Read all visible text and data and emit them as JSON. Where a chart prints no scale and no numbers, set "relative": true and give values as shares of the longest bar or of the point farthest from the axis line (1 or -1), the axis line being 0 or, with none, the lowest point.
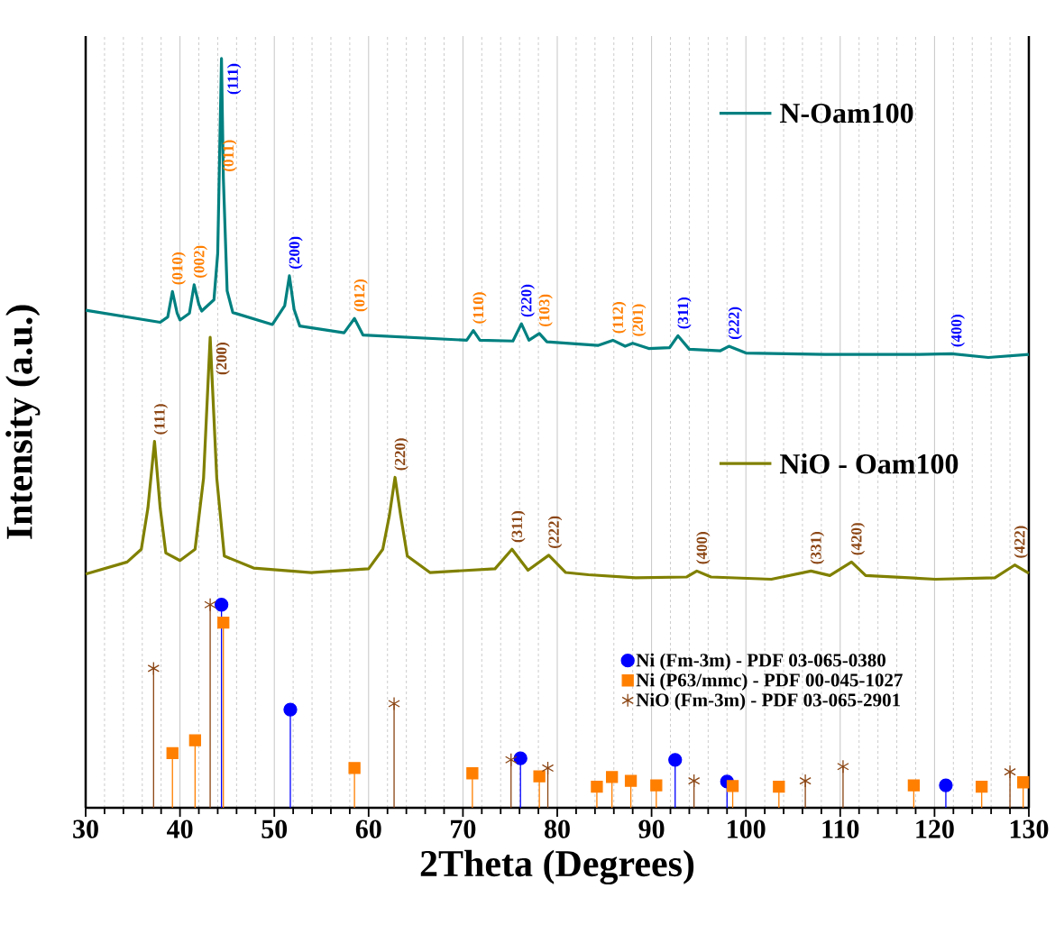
{
  "chart_data": {
    "type": "line",
    "relative": true,
    "xlabel": "2Theta (Degrees)",
    "ylabel": "Intensity (a.u.)",
    "xlim": [
      30,
      130
    ],
    "xticks": [
      30,
      40,
      50,
      60,
      70,
      80,
      90,
      100,
      110,
      120,
      130,
      {
        "value": 32,
        "label": null
      },
      {
        "value": 34,
        "label": null
      },
      {
        "value": 36,
        "label": null
      },
      {
        "value": 38,
        "label": null
      },
      {
        "value": 42,
        "label": null
      },
      {
        "value": 44,
        "label": null
      },
      {
        "value": 46,
        "label": null
      },
      {
        "value": 48,
        "label": null
      },
      {
        "value": 52,
        "label": null
      },
      {
        "value": 54,
        "label": null
      },
      {
        "value": 56,
        "label": null
      },
      {
        "value": 58,
        "label": null
      },
      {
        "value": 62,
        "label": null
      },
      {
        "value": 64,
        "label": null
      },
      {
        "value": 66,
        "label": null
      },
      {
        "value": 68,
        "label": null
      },
      {
        "value": 72,
        "label": null
      },
      {
        "value": 74,
        "label": null
      },
      {
        "value": 76,
        "label": null
      },
      {
        "value": 78,
        "label": null
      },
      {
        "value": 82,
        "label": null
      },
      {
        "value": 84,
        "label": null
      },
      {
        "value": 86,
        "label": null
      },
      {
        "value": 88,
        "label": null
      },
      {
        "value": 92,
        "label": null
      },
      {
        "value": 94,
        "label": null
      },
      {
        "value": 96,
        "label": null
      },
      {
        "value": 98,
        "label": null
      },
      {
        "value": 102,
        "label": null
      },
      {
        "value": 104,
        "label": null
      },
      {
        "value": 106,
        "label": null
      },
      {
        "value": 108,
        "label": null
      },
      {
        "value": 112,
        "label": null
      },
      {
        "value": 114,
        "label": null
      },
      {
        "value": 116,
        "label": null
      },
      {
        "value": 118,
        "label": null
      },
      {
        "value": 122,
        "label": null
      },
      {
        "value": 124,
        "label": null
      },
      {
        "value": 126,
        "label": null
      },
      {
        "value": 128,
        "label": null
      }
    ],
    "grid": "x",
    "legend": "right",
    "series": [
      {
        "name": "N-Oam100",
        "color": "#008080",
        "x": [
          30,
          37.9,
          38.7,
          39.2,
          39.7,
          40.0,
          41.0,
          41.5,
          42.0,
          42.3,
          43.6,
          44.0,
          44.4,
          44.6,
          45.0,
          45.6,
          49.8,
          51.1,
          51.6,
          52.1,
          52.7,
          57.4,
          58.5,
          59.4,
          70.4,
          71.1,
          71.8,
          75.3,
          76.2,
          77.0,
          78.1,
          78.9,
          84.3,
          85.9,
          87.2,
          88.0,
          89.7,
          91.9,
          92.8,
          94.0,
          97.3,
          98.2,
          100.0,
          108.4,
          118.4,
          121.8,
          125.7,
          130
        ],
        "values": [
          0.664,
          0.648,
          0.655,
          0.689,
          0.66,
          0.651,
          0.66,
          0.698,
          0.672,
          0.663,
          0.678,
          0.74,
          1.0,
          0.84,
          0.69,
          0.661,
          0.645,
          0.67,
          0.71,
          0.665,
          0.643,
          0.634,
          0.653,
          0.631,
          0.624,
          0.637,
          0.624,
          0.623,
          0.646,
          0.624,
          0.633,
          0.622,
          0.617,
          0.624,
          0.616,
          0.62,
          0.613,
          0.614,
          0.63,
          0.612,
          0.61,
          0.616,
          0.607,
          0.605,
          0.605,
          0.606,
          0.601,
          0.605
        ]
      },
      {
        "name": "NiO - Oam100",
        "color": "#808000",
        "x": [
          30,
          34.4,
          35.9,
          36.6,
          37.3,
          37.9,
          38.5,
          40.0,
          41.6,
          42.5,
          43.2,
          43.9,
          44.7,
          47.8,
          53.9,
          60.0,
          61.5,
          62.2,
          62.8,
          63.4,
          64.1,
          66.5,
          73.4,
          75.2,
          76.9,
          79.1,
          80.9,
          83.3,
          88.3,
          93.7,
          94.8,
          96.3,
          102.7,
          106.9,
          108.9,
          111.2,
          112.7,
          120.1,
          126.4,
          128.5,
          130
        ],
        "values": [
          0.312,
          0.328,
          0.345,
          0.4,
          0.489,
          0.4,
          0.34,
          0.33,
          0.345,
          0.44,
          0.628,
          0.44,
          0.336,
          0.32,
          0.314,
          0.319,
          0.345,
          0.39,
          0.441,
          0.39,
          0.336,
          0.314,
          0.319,
          0.345,
          0.317,
          0.337,
          0.314,
          0.311,
          0.307,
          0.308,
          0.316,
          0.308,
          0.305,
          0.316,
          0.31,
          0.328,
          0.31,
          0.305,
          0.307,
          0.324,
          0.313
        ]
      },
      {
        "name": "Ni (Fm-3m) - PDF 03-065-0380",
        "type": "lollipop",
        "marker": "circle",
        "color": "#0000ff",
        "x": [
          44.4,
          51.7,
          76.1,
          92.5,
          98.0,
          121.2
        ],
        "values": [
          0.271,
          0.131,
          0.066,
          0.064,
          0.035,
          0.03
        ]
      },
      {
        "name": "Ni (P63/mmc) - PDF 00-045-1027",
        "type": "lollipop",
        "marker": "square",
        "color": "#ff7f00",
        "x": [
          39.2,
          41.6,
          44.6,
          58.5,
          71.0,
          78.1,
          84.2,
          85.8,
          87.8,
          90.5,
          98.6,
          103.5,
          117.8,
          125.0,
          129.4
        ],
        "values": [
          0.073,
          0.09,
          0.247,
          0.053,
          0.046,
          0.042,
          0.028,
          0.041,
          0.036,
          0.03,
          0.029,
          0.028,
          0.03,
          0.028,
          0.034
        ]
      },
      {
        "name": "NiO (Fm-3m) - PDF 03-065-2901",
        "type": "lollipop",
        "marker": "cross",
        "color": "#8b4513",
        "x": [
          37.2,
          43.2,
          62.7,
          75.1,
          79.0,
          94.5,
          106.3,
          110.3,
          128.0
        ],
        "values": [
          0.186,
          0.271,
          0.139,
          0.064,
          0.053,
          0.036,
          0.036,
          0.055,
          0.048
        ]
      }
    ],
    "annotations": [
      {
        "text": "(010)",
        "x": 39.2,
        "y": 0.689
      },
      {
        "text": "(002)",
        "x": 41.5,
        "y": 0.698
      },
      {
        "text": "(011)",
        "x": 44.6,
        "y": 0.84
      },
      {
        "text": "(111)",
        "x": 44.4,
        "y": 1.0
      },
      {
        "text": "(200)",
        "x": 51.6,
        "y": 0.71
      },
      {
        "text": "(012)",
        "x": 58.5,
        "y": 0.653
      },
      {
        "text": "(110)",
        "x": 71.1,
        "y": 0.637
      },
      {
        "text": "(220)",
        "x": 76.2,
        "y": 0.646
      },
      {
        "text": "(103)",
        "x": 78.1,
        "y": 0.633
      },
      {
        "text": "(112)",
        "x": 85.9,
        "y": 0.624
      },
      {
        "text": "(201)",
        "x": 88.0,
        "y": 0.62
      },
      {
        "text": "(311)",
        "x": 92.8,
        "y": 0.63
      },
      {
        "text": "(222)",
        "x": 98.2,
        "y": 0.616
      },
      {
        "text": "(400)",
        "x": 121.8,
        "y": 0.606
      },
      {
        "text": "(111)",
        "x": 37.3,
        "y": 0.489
      },
      {
        "text": "(200)",
        "x": 43.2,
        "y": 0.628
      },
      {
        "text": "(220)",
        "x": 62.8,
        "y": 0.441
      },
      {
        "text": "(311)",
        "x": 75.2,
        "y": 0.345
      },
      {
        "text": "(222)",
        "x": 79.1,
        "y": 0.337
      },
      {
        "text": "(400)",
        "x": 94.8,
        "y": 0.316
      },
      {
        "text": "(331)",
        "x": 106.9,
        "y": 0.316
      },
      {
        "text": "(420)",
        "x": 111.2,
        "y": 0.328
      },
      {
        "text": "(422)",
        "x": 128.5,
        "y": 0.324
      }
    ]
  }
}
